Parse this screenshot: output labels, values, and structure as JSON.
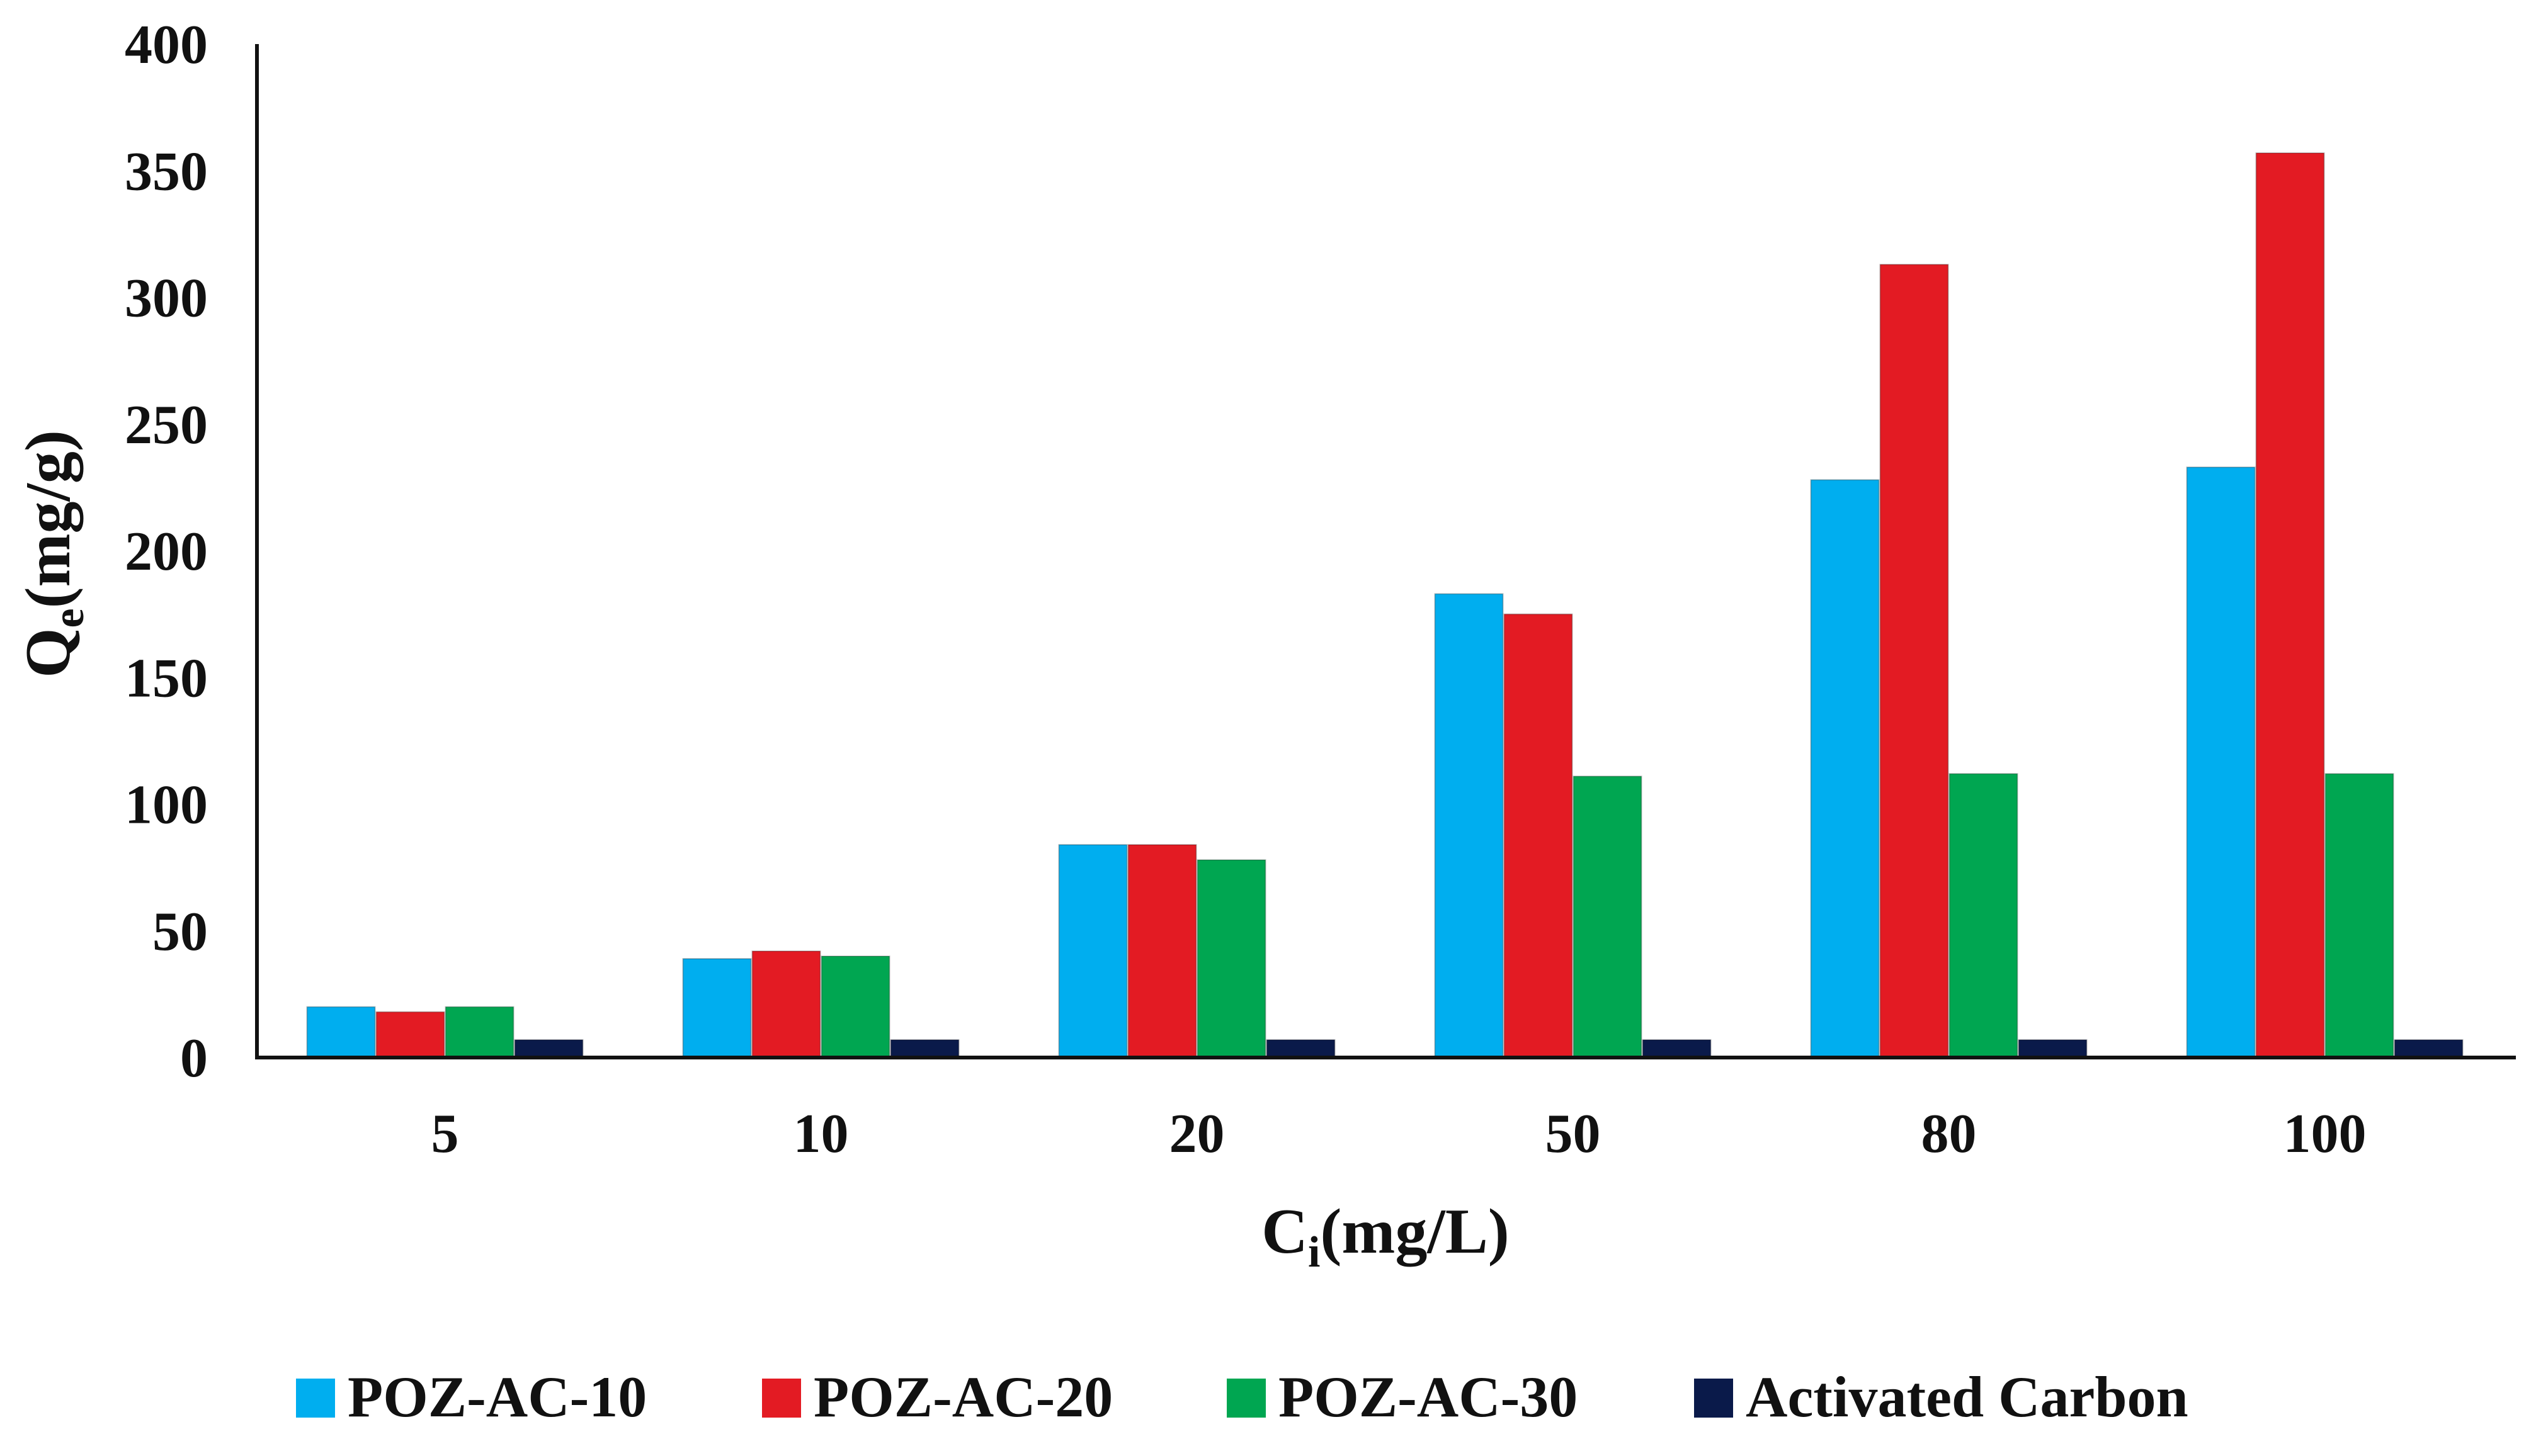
{
  "chart_data": {
    "type": "bar",
    "categories": [
      "5",
      "10",
      "20",
      "50",
      "80",
      "100"
    ],
    "series": [
      {
        "name": "POZ-AC-10",
        "color": "#00AEEF",
        "values": [
          20,
          39,
          84,
          183,
          228,
          233
        ]
      },
      {
        "name": "POZ-AC-20",
        "color": "#E31B23",
        "values": [
          18,
          42,
          84,
          175,
          313,
          357
        ]
      },
      {
        "name": "POZ-AC-30",
        "color": "#00A651",
        "values": [
          20,
          40,
          78,
          111,
          112,
          112
        ]
      },
      {
        "name": "Activated Carbon",
        "color": "#0A1A4A",
        "values": [
          7,
          7,
          7,
          7,
          7,
          7
        ]
      }
    ],
    "xlabel": {
      "main": "C",
      "sub": "i",
      "unit": "(mg/L)"
    },
    "ylabel": {
      "main": "Q",
      "sub": "e",
      "unit": "(mg/g)"
    },
    "ylim": [
      0,
      400
    ],
    "yticks": [
      0,
      50,
      100,
      150,
      200,
      250,
      300,
      350,
      400
    ],
    "grid": false,
    "legend_position": "bottom"
  }
}
